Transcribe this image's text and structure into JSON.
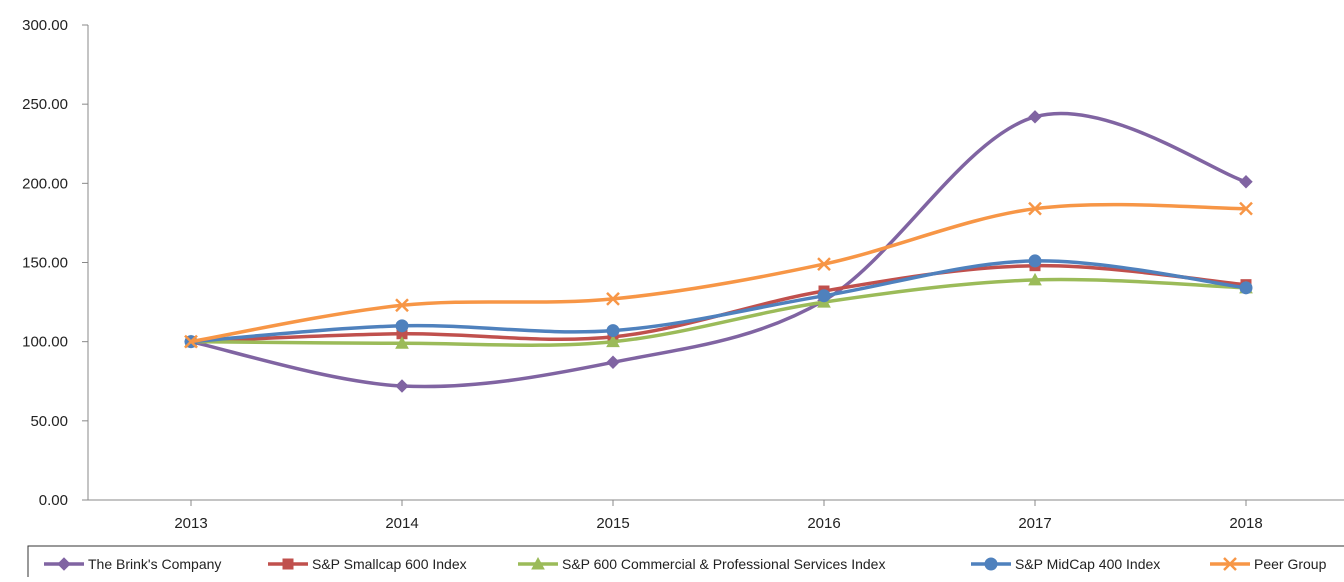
{
  "chart_data": {
    "type": "line",
    "title": "",
    "xlabel": "",
    "ylabel": "",
    "categories": [
      "2013",
      "2014",
      "2015",
      "2016",
      "2017",
      "2018"
    ],
    "y_ticks": [
      "0.00",
      "50.00",
      "100.00",
      "150.00",
      "200.00",
      "250.00",
      "300.00"
    ],
    "ylim": [
      0,
      300
    ],
    "grid": false,
    "smooth": true,
    "legend_position": "bottom",
    "series": [
      {
        "name": "The Brink's Company",
        "values": [
          100,
          72,
          87,
          126,
          242,
          201
        ],
        "color": "#8064A2",
        "marker": "diamond"
      },
      {
        "name": "S&P Smallcap 600 Index",
        "values": [
          100,
          105,
          103,
          132,
          148,
          136
        ],
        "color": "#C0504D",
        "marker": "square"
      },
      {
        "name": "S&P 600 Commercial & Professional Services Index",
        "values": [
          100,
          99,
          100,
          125,
          139,
          134
        ],
        "color": "#9BBB59",
        "marker": "triangle"
      },
      {
        "name": "S&P MidCap 400 Index",
        "values": [
          100,
          110,
          107,
          129,
          151,
          134
        ],
        "color": "#4F81BD",
        "marker": "circle"
      },
      {
        "name": "Peer Group",
        "values": [
          100,
          123,
          127,
          149,
          184,
          184
        ],
        "color": "#F79646",
        "marker": "x"
      }
    ]
  }
}
